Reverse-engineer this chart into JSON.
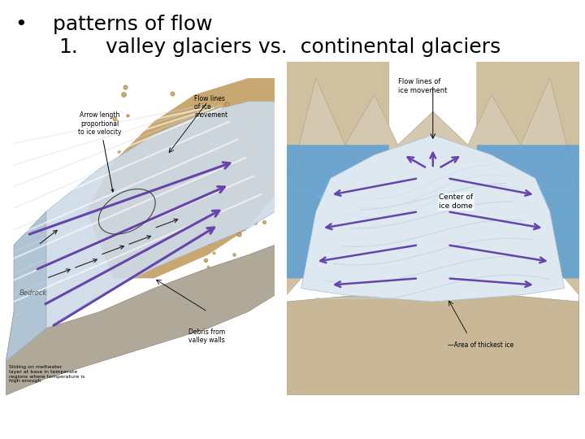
{
  "bg_color": "#ffffff",
  "bullet": "•",
  "title": "patterns of flow",
  "subtitle_num": "1.",
  "subtitle_text": "valley glaciers vs.  continental glaciers",
  "title_fontsize": 18,
  "subtitle_fontsize": 18,
  "arrow_color": "#6644aa",
  "black_arrow": "#222222",
  "glacier_blue": "#cddbe8",
  "glacier_white": "#e8eff5",
  "glacier_stripe": "#b8ccd8",
  "rock_brown": "#c8a870",
  "rock_dark": "#a08050",
  "bedrock_gray": "#b0a898",
  "mountain_tan": "#cfc0a0",
  "water_blue": "#5b9fd4",
  "ice_white": "#dde8f0",
  "bottom_tan": "#c8b898"
}
